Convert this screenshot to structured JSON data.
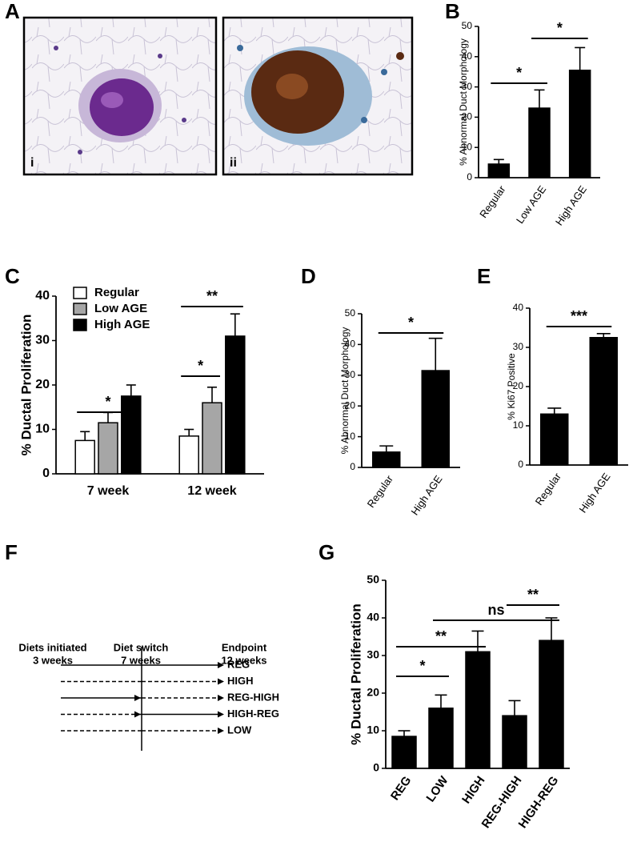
{
  "figure": {
    "panel_a": {
      "label": "A",
      "images": [
        "i",
        "ii"
      ]
    },
    "panel_f": {
      "label": "F",
      "columns": [
        [
          "Diets initiated",
          "3 weeks"
        ],
        [
          "Diet switch",
          "7 weeks"
        ],
        [
          "Endpoint",
          "12 weeks"
        ]
      ],
      "rows": [
        "REG",
        "HIGH",
        "REG-HIGH",
        "HIGH-REG",
        "LOW"
      ]
    }
  },
  "chart_data": [
    {
      "type": "bar",
      "panel": "B",
      "y_label": "% Abnormal Duct Morphology",
      "categories": [
        "Regular",
        "Low AGE",
        "High AGE"
      ],
      "values": [
        4.5,
        23,
        35.5
      ],
      "errors": [
        1.5,
        6,
        7.5
      ],
      "color": "#000000",
      "ylim": [
        0,
        50
      ],
      "yticks": [
        0,
        10,
        20,
        30,
        40,
        50
      ],
      "brackets": [
        {
          "text": "*",
          "between": [
            0,
            1
          ]
        },
        {
          "text": "*",
          "between": [
            1,
            2
          ]
        }
      ]
    },
    {
      "type": "grouped_bar",
      "panel": "C",
      "y_label": "% Ductal Proliferation",
      "categories": [
        "7 week",
        "12 week"
      ],
      "series": [
        {
          "name": "Regular",
          "color": "#ffffff",
          "values": [
            7.5,
            8.5
          ],
          "errors": [
            2,
            1.5
          ]
        },
        {
          "name": "Low AGE",
          "color": "#a6a6a6",
          "values": [
            11.5,
            16
          ],
          "errors": [
            2.3,
            3.5
          ]
        },
        {
          "name": "High AGE",
          "color": "#000000",
          "values": [
            17.5,
            31
          ],
          "errors": [
            2.5,
            5
          ]
        }
      ],
      "ylim": [
        0,
        40
      ],
      "yticks": [
        0,
        10,
        20,
        30,
        40
      ],
      "brackets": [
        {
          "text": "*",
          "between": [
            0,
            2
          ]
        },
        {
          "text": "*",
          "between": [
            3,
            4
          ]
        },
        {
          "text": "**",
          "between": [
            3,
            5
          ]
        }
      ]
    },
    {
      "type": "bar",
      "panel": "D",
      "y_label": "% Abnormal Duct Morphology",
      "categories": [
        "Regular",
        "High AGE"
      ],
      "values": [
        5,
        31.5
      ],
      "errors": [
        2,
        10.5
      ],
      "color": "#000000",
      "ylim": [
        0,
        50
      ],
      "yticks": [
        0,
        10,
        20,
        30,
        40,
        50
      ],
      "brackets": [
        {
          "text": "*",
          "between": [
            0,
            1
          ]
        }
      ]
    },
    {
      "type": "bar",
      "panel": "E",
      "y_label": "% Ki67 Positive",
      "categories": [
        "Regular",
        "High AGE"
      ],
      "values": [
        13,
        32.5
      ],
      "errors": [
        1.5,
        1
      ],
      "color": "#000000",
      "ylim": [
        0,
        40
      ],
      "yticks": [
        0,
        10,
        20,
        30,
        40
      ],
      "brackets": [
        {
          "text": "***",
          "between": [
            0,
            1
          ]
        }
      ]
    },
    {
      "type": "bar",
      "panel": "G",
      "y_label": "% Ductal Proliferation",
      "categories": [
        "REG",
        "LOW",
        "HIGH",
        "REG-HIGH",
        "HIGH-REG"
      ],
      "values": [
        8.5,
        16,
        31,
        14,
        34
      ],
      "errors": [
        1.5,
        3.5,
        5.5,
        4,
        6
      ],
      "color": "#000000",
      "ylim": [
        0,
        50
      ],
      "yticks": [
        0,
        10,
        20,
        30,
        40,
        50
      ],
      "brackets": [
        {
          "text": "*",
          "between": [
            0,
            1
          ]
        },
        {
          "text": "**",
          "between": [
            0,
            2
          ]
        },
        {
          "text": "ns",
          "between": [
            1,
            4
          ]
        },
        {
          "text": "**",
          "between": [
            3,
            4
          ]
        }
      ]
    }
  ]
}
